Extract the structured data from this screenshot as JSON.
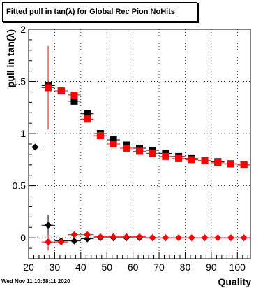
{
  "title": "Fitted pull in tan(λ) for Global Rec Pion NoHits",
  "timestamp": "Wed Nov 11 10:58:11 2020",
  "chart_data": {
    "type": "scatter",
    "title": "Fitted pull in tan(λ) for Global Rec Pion NoHits",
    "xlabel": "Quality",
    "ylabel": "pull in tan(λ)",
    "xlim": [
      20,
      105
    ],
    "ylim": [
      -0.2,
      2.0
    ],
    "xticks": [
      20,
      30,
      40,
      50,
      60,
      70,
      80,
      90,
      100
    ],
    "yticks": [
      0,
      0.5,
      1,
      1.5,
      2
    ],
    "ytick_labels": [
      "0",
      "0.5",
      "1",
      "1.5",
      "2"
    ],
    "grid": true,
    "series": [
      {
        "marker": "square",
        "color": "#000000",
        "points": [
          {
            "x": 27.5,
            "y": 1.46,
            "xerr": 2.5,
            "yerr": 0.0
          },
          {
            "x": 32.5,
            "y": 1.41,
            "xerr": 2.5,
            "yerr": 0.0
          },
          {
            "x": 37.5,
            "y": 1.31,
            "xerr": 2.5,
            "yerr": 0.0
          },
          {
            "x": 42.5,
            "y": 1.19,
            "xerr": 2.5,
            "yerr": 0.0
          },
          {
            "x": 47.5,
            "y": 1.0,
            "xerr": 2.5,
            "yerr": 0.0
          },
          {
            "x": 52.5,
            "y": 0.94,
            "xerr": 2.5,
            "yerr": 0.0
          },
          {
            "x": 57.5,
            "y": 0.89,
            "xerr": 2.5,
            "yerr": 0.0
          },
          {
            "x": 62.5,
            "y": 0.86,
            "xerr": 2.5,
            "yerr": 0.0
          },
          {
            "x": 67.5,
            "y": 0.84,
            "xerr": 2.5,
            "yerr": 0.0
          },
          {
            "x": 72.5,
            "y": 0.81,
            "xerr": 2.5,
            "yerr": 0.0
          },
          {
            "x": 77.5,
            "y": 0.78,
            "xerr": 2.5,
            "yerr": 0.0
          },
          {
            "x": 82.5,
            "y": 0.76,
            "xerr": 2.5,
            "yerr": 0.0
          },
          {
            "x": 87.5,
            "y": 0.74,
            "xerr": 2.5,
            "yerr": 0.0
          },
          {
            "x": 92.5,
            "y": 0.73,
            "xerr": 2.5,
            "yerr": 0.0
          },
          {
            "x": 97.5,
            "y": 0.71,
            "xerr": 2.5,
            "yerr": 0.0
          },
          {
            "x": 102.5,
            "y": 0.7,
            "xerr": 2.5,
            "yerr": 0.0
          }
        ]
      },
      {
        "marker": "square",
        "color": "#ff0000",
        "points": [
          {
            "x": 27.5,
            "y": 1.44,
            "xerr": 2.5,
            "yerr": 0.4
          },
          {
            "x": 32.5,
            "y": 1.41,
            "xerr": 2.5,
            "yerr": 0.03
          },
          {
            "x": 37.5,
            "y": 1.37,
            "xerr": 2.5,
            "yerr": 0.02
          },
          {
            "x": 42.5,
            "y": 1.14,
            "xerr": 2.5,
            "yerr": 0.01
          },
          {
            "x": 47.5,
            "y": 0.98,
            "xerr": 2.5,
            "yerr": 0.0
          },
          {
            "x": 52.5,
            "y": 0.9,
            "xerr": 2.5,
            "yerr": 0.0
          },
          {
            "x": 57.5,
            "y": 0.86,
            "xerr": 2.5,
            "yerr": 0.0
          },
          {
            "x": 62.5,
            "y": 0.83,
            "xerr": 2.5,
            "yerr": 0.0
          },
          {
            "x": 67.5,
            "y": 0.81,
            "xerr": 2.5,
            "yerr": 0.0
          },
          {
            "x": 72.5,
            "y": 0.78,
            "xerr": 2.5,
            "yerr": 0.0
          },
          {
            "x": 77.5,
            "y": 0.76,
            "xerr": 2.5,
            "yerr": 0.0
          },
          {
            "x": 82.5,
            "y": 0.75,
            "xerr": 2.5,
            "yerr": 0.0
          },
          {
            "x": 87.5,
            "y": 0.74,
            "xerr": 2.5,
            "yerr": 0.0
          },
          {
            "x": 92.5,
            "y": 0.72,
            "xerr": 2.5,
            "yerr": 0.0
          },
          {
            "x": 97.5,
            "y": 0.71,
            "xerr": 2.5,
            "yerr": 0.0
          },
          {
            "x": 102.5,
            "y": 0.7,
            "xerr": 2.5,
            "yerr": 0.0
          }
        ]
      },
      {
        "marker": "diamond",
        "color": "#000000",
        "points": [
          {
            "x": 22.5,
            "y": 0.87,
            "xerr": 2.5,
            "yerr": 0.0
          },
          {
            "x": 27.5,
            "y": 0.12,
            "xerr": 2.5,
            "yerr": 0.1
          },
          {
            "x": 32.5,
            "y": -0.03,
            "xerr": 2.5,
            "yerr": 0.02
          },
          {
            "x": 37.5,
            "y": -0.03,
            "xerr": 2.5,
            "yerr": 0.01
          },
          {
            "x": 42.5,
            "y": -0.01,
            "xerr": 2.5,
            "yerr": 0.0
          },
          {
            "x": 47.5,
            "y": 0.0,
            "xerr": 2.5,
            "yerr": 0.0
          },
          {
            "x": 52.5,
            "y": 0.0,
            "xerr": 2.5,
            "yerr": 0.0
          },
          {
            "x": 57.5,
            "y": 0.0,
            "xerr": 2.5,
            "yerr": 0.0
          },
          {
            "x": 62.5,
            "y": 0.0,
            "xerr": 2.5,
            "yerr": 0.0
          },
          {
            "x": 67.5,
            "y": 0.0,
            "xerr": 2.5,
            "yerr": 0.0
          }
        ]
      },
      {
        "marker": "diamond",
        "color": "#ff0000",
        "points": [
          {
            "x": 27.5,
            "y": -0.04,
            "xerr": 2.5,
            "yerr": 0.08
          },
          {
            "x": 32.5,
            "y": -0.04,
            "xerr": 2.5,
            "yerr": 0.02
          },
          {
            "x": 37.5,
            "y": 0.03,
            "xerr": 2.5,
            "yerr": 0.01
          },
          {
            "x": 42.5,
            "y": 0.03,
            "xerr": 2.5,
            "yerr": 0.0
          },
          {
            "x": 47.5,
            "y": 0.01,
            "xerr": 2.5,
            "yerr": 0.0
          },
          {
            "x": 52.5,
            "y": 0.01,
            "xerr": 2.5,
            "yerr": 0.0
          },
          {
            "x": 57.5,
            "y": 0.01,
            "xerr": 2.5,
            "yerr": 0.0
          },
          {
            "x": 62.5,
            "y": 0.01,
            "xerr": 2.5,
            "yerr": 0.0
          },
          {
            "x": 67.5,
            "y": 0.0,
            "xerr": 2.5,
            "yerr": 0.0
          },
          {
            "x": 72.5,
            "y": 0.0,
            "xerr": 2.5,
            "yerr": 0.0
          },
          {
            "x": 77.5,
            "y": 0.0,
            "xerr": 2.5,
            "yerr": 0.0
          },
          {
            "x": 82.5,
            "y": 0.0,
            "xerr": 2.5,
            "yerr": 0.0
          },
          {
            "x": 87.5,
            "y": 0.0,
            "xerr": 2.5,
            "yerr": 0.0
          },
          {
            "x": 92.5,
            "y": 0.0,
            "xerr": 2.5,
            "yerr": 0.0
          },
          {
            "x": 97.5,
            "y": 0.0,
            "xerr": 2.5,
            "yerr": 0.0
          },
          {
            "x": 102.5,
            "y": 0.0,
            "xerr": 2.5,
            "yerr": 0.0
          }
        ]
      }
    ]
  }
}
